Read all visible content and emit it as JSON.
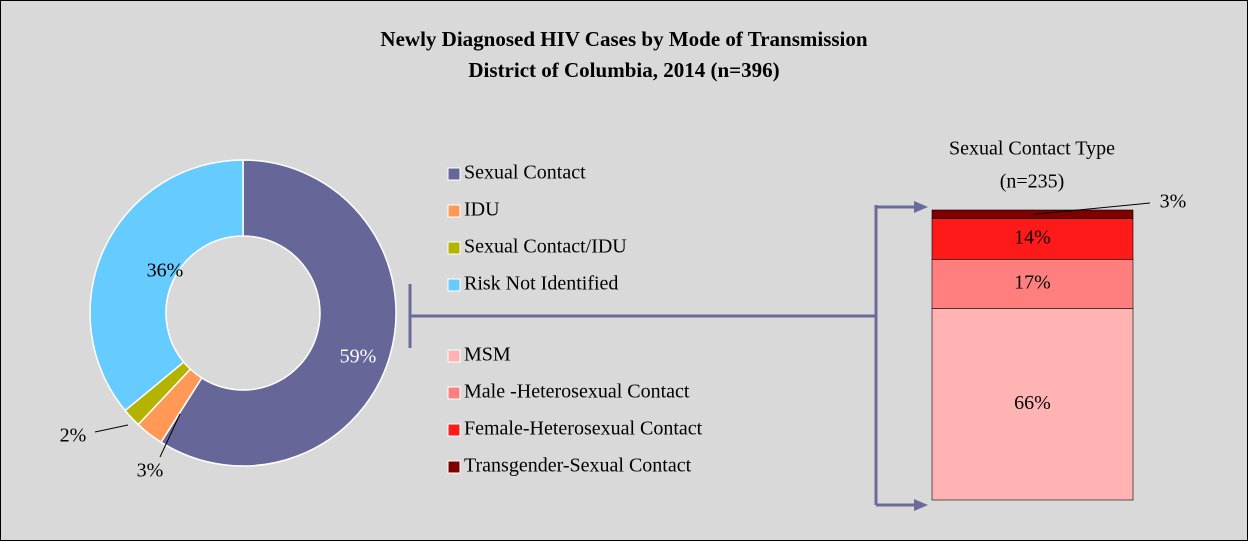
{
  "chart_data": [
    {
      "type": "doughnut",
      "title": "Newly Diagnosed HIV Cases by Mode of Transmission",
      "subtitle": "District of Columbia, 2014 (n=396)",
      "categories": [
        "Sexual Contact",
        "IDU",
        "Sexual Contact/IDU",
        "Risk Not Identified"
      ],
      "values": [
        59,
        3,
        2,
        36
      ],
      "value_labels": [
        "59%",
        "3%",
        "2%",
        "36%"
      ],
      "colors": [
        "#666699",
        "#ff9955",
        "#b3b300",
        "#66ccff"
      ]
    },
    {
      "type": "stacked_bar",
      "title": "Sexual Contact Type",
      "subtitle": "(n=235)",
      "categories": [
        "MSM",
        "Male -Heterosexual Contact",
        "Female-Heterosexual Contact",
        "Transgender-Sexual Contact"
      ],
      "values": [
        66,
        17,
        14,
        3
      ],
      "value_labels": [
        "66%",
        "17%",
        "14%",
        "3%"
      ],
      "colors": [
        "#ffb3b3",
        "#ff7f7f",
        "#ff1a1a",
        "#800000"
      ]
    }
  ]
}
